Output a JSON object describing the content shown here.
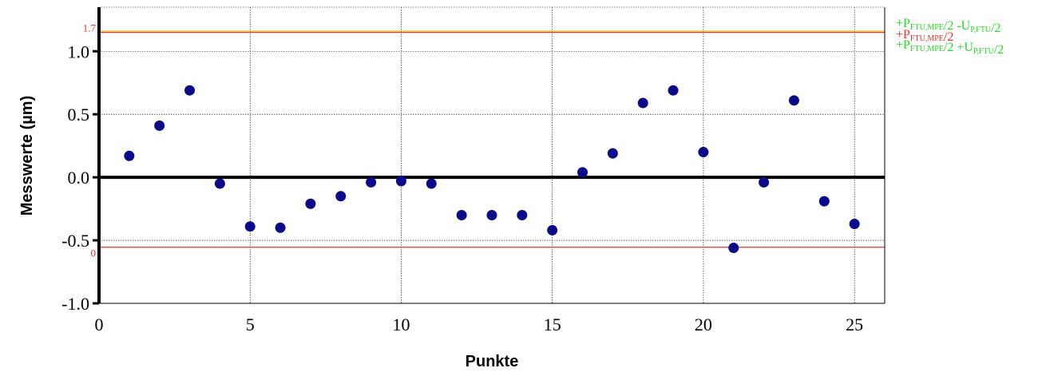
{
  "chart_data": {
    "type": "scatter",
    "xlabel": "Punkte",
    "ylabel": "Messwerte (µm)",
    "xlim": [
      0,
      26
    ],
    "ylim": [
      -1.0,
      1.35
    ],
    "x_ticks": [
      0,
      5,
      10,
      15,
      20,
      25
    ],
    "y_ticks": [
      -1.0,
      -0.5,
      0.0,
      0.5,
      1.0
    ],
    "y_tick_labels": [
      "-1.0",
      "-0.5",
      "0.0",
      "0.5",
      "1.0"
    ],
    "grid": true,
    "points": {
      "x": [
        1,
        2,
        3,
        4,
        5,
        6,
        7,
        8,
        9,
        10,
        11,
        12,
        13,
        14,
        15,
        16,
        17,
        18,
        19,
        20,
        21,
        22,
        23,
        24,
        25
      ],
      "y": [
        0.17,
        0.41,
        0.69,
        -0.05,
        -0.39,
        -0.4,
        -0.21,
        -0.15,
        -0.04,
        -0.03,
        -0.05,
        -0.3,
        -0.3,
        -0.3,
        -0.42,
        0.04,
        0.19,
        0.59,
        0.69,
        0.2,
        -0.56,
        -0.04,
        0.61,
        -0.19,
        -0.37
      ],
      "color": "#0a0a8a"
    },
    "reference_lines": [
      {
        "y": 1.15,
        "color": "#e8322e",
        "tag": "1.7"
      },
      {
        "y": 1.16,
        "color": "#ffb000",
        "tag": ""
      },
      {
        "y": -0.555,
        "color": "#e8322e",
        "tag": "0"
      }
    ],
    "legend": {
      "placement": "right",
      "entries": [
        {
          "prefix": "+P",
          "sub1": "FTU,MPE",
          "mid": "/2 -U",
          "sub2": "P,FTU",
          "suffix": "/2",
          "color": "#22dd22"
        },
        {
          "prefix": "+P",
          "sub1": "FTU,MPE",
          "mid": "/2",
          "sub2": "",
          "suffix": "",
          "color": "#e8322e"
        },
        {
          "prefix": "+P",
          "sub1": "FTU,MPE",
          "mid": "/2 +U",
          "sub2": "P,FTU",
          "suffix": "/2",
          "color": "#22dd22"
        }
      ]
    }
  }
}
